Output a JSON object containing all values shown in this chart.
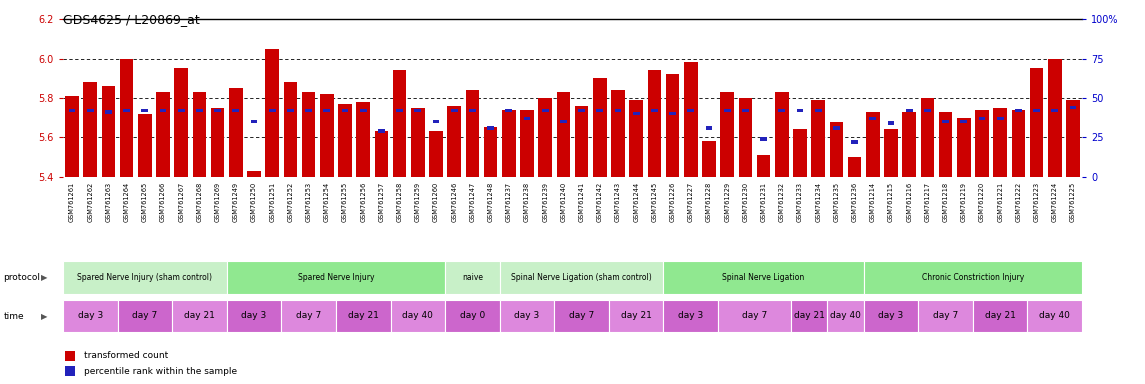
{
  "title": "GDS4625 / L20869_at",
  "ylim_left": [
    5.4,
    6.2
  ],
  "ylim_right": [
    0,
    100
  ],
  "yticks_left": [
    5.4,
    5.6,
    5.8,
    6.0,
    6.2
  ],
  "yticks_right": [
    0,
    25,
    50,
    75,
    100
  ],
  "bar_color": "#cc0000",
  "dot_color": "#2222bb",
  "bg_color": "#ffffff",
  "samples": [
    "GSM761261",
    "GSM761262",
    "GSM761263",
    "GSM761264",
    "GSM761265",
    "GSM761266",
    "GSM761267",
    "GSM761268",
    "GSM761269",
    "GSM761249",
    "GSM761250",
    "GSM761251",
    "GSM761252",
    "GSM761253",
    "GSM761254",
    "GSM761255",
    "GSM761256",
    "GSM761257",
    "GSM761258",
    "GSM761259",
    "GSM761260",
    "GSM761246",
    "GSM761247",
    "GSM761248",
    "GSM761237",
    "GSM761238",
    "GSM761239",
    "GSM761240",
    "GSM761241",
    "GSM761242",
    "GSM761243",
    "GSM761244",
    "GSM761245",
    "GSM761226",
    "GSM761227",
    "GSM761228",
    "GSM761229",
    "GSM761230",
    "GSM761231",
    "GSM761232",
    "GSM761233",
    "GSM761234",
    "GSM761235",
    "GSM761236",
    "GSM761214",
    "GSM761215",
    "GSM761216",
    "GSM761217",
    "GSM761218",
    "GSM761219",
    "GSM761220",
    "GSM761221",
    "GSM761222",
    "GSM761223",
    "GSM761224",
    "GSM761225"
  ],
  "bar_heights": [
    5.81,
    5.88,
    5.86,
    6.0,
    5.72,
    5.83,
    5.95,
    5.83,
    5.75,
    5.85,
    5.43,
    6.05,
    5.88,
    5.83,
    5.82,
    5.77,
    5.78,
    5.63,
    5.94,
    5.75,
    5.63,
    5.76,
    5.84,
    5.65,
    5.74,
    5.74,
    5.8,
    5.83,
    5.76,
    5.9,
    5.84,
    5.79,
    5.94,
    5.92,
    5.98,
    5.58,
    5.83,
    5.8,
    5.51,
    5.83,
    5.64,
    5.79,
    5.68,
    5.5,
    5.73,
    5.64,
    5.73,
    5.8,
    5.73,
    5.7,
    5.74,
    5.75,
    5.74,
    5.95,
    6.0,
    5.79
  ],
  "dot_percents": [
    42,
    42,
    41,
    42,
    42,
    42,
    42,
    42,
    42,
    42,
    35,
    42,
    42,
    42,
    42,
    42,
    42,
    29,
    42,
    42,
    35,
    42,
    42,
    31,
    42,
    37,
    42,
    35,
    42,
    42,
    42,
    40,
    42,
    40,
    42,
    31,
    42,
    42,
    24,
    42,
    42,
    42,
    31,
    22,
    37,
    34,
    42,
    42,
    35,
    35,
    37,
    37,
    42,
    42,
    42,
    44
  ],
  "protocols": [
    {
      "label": "Spared Nerve Injury (sham control)",
      "start": 0,
      "end": 9,
      "color": "#c8f0c8"
    },
    {
      "label": "Spared Nerve Injury",
      "start": 9,
      "end": 21,
      "color": "#90e890"
    },
    {
      "label": "naive",
      "start": 21,
      "end": 24,
      "color": "#c8f0c8"
    },
    {
      "label": "Spinal Nerve Ligation (sham control)",
      "start": 24,
      "end": 33,
      "color": "#c8f0c8"
    },
    {
      "label": "Spinal Nerve Ligation",
      "start": 33,
      "end": 44,
      "color": "#90e890"
    },
    {
      "label": "Chronic Constriction Injury",
      "start": 44,
      "end": 56,
      "color": "#90e890"
    }
  ],
  "times": [
    {
      "label": "day 3",
      "start": 0,
      "end": 3
    },
    {
      "label": "day 7",
      "start": 3,
      "end": 6
    },
    {
      "label": "day 21",
      "start": 6,
      "end": 9
    },
    {
      "label": "day 3",
      "start": 9,
      "end": 12
    },
    {
      "label": "day 7",
      "start": 12,
      "end": 15
    },
    {
      "label": "day 21",
      "start": 15,
      "end": 18
    },
    {
      "label": "day 40",
      "start": 18,
      "end": 21
    },
    {
      "label": "day 0",
      "start": 21,
      "end": 24
    },
    {
      "label": "day 3",
      "start": 24,
      "end": 27
    },
    {
      "label": "day 7",
      "start": 27,
      "end": 30
    },
    {
      "label": "day 21",
      "start": 30,
      "end": 33
    },
    {
      "label": "day 3",
      "start": 33,
      "end": 36
    },
    {
      "label": "day 7",
      "start": 36,
      "end": 40
    },
    {
      "label": "day 21",
      "start": 40,
      "end": 42
    },
    {
      "label": "day 40",
      "start": 42,
      "end": 44
    },
    {
      "label": "day 3",
      "start": 44,
      "end": 47
    },
    {
      "label": "day 7",
      "start": 47,
      "end": 50
    },
    {
      "label": "day 21",
      "start": 50,
      "end": 53
    },
    {
      "label": "day 40",
      "start": 53,
      "end": 56
    }
  ],
  "time_colors": [
    "#dd88dd",
    "#cc66cc"
  ],
  "left_axis_color": "#cc0000",
  "right_axis_color": "#0000cc",
  "grid_yticks": [
    5.6,
    5.8,
    6.0
  ],
  "bar_width": 0.75
}
